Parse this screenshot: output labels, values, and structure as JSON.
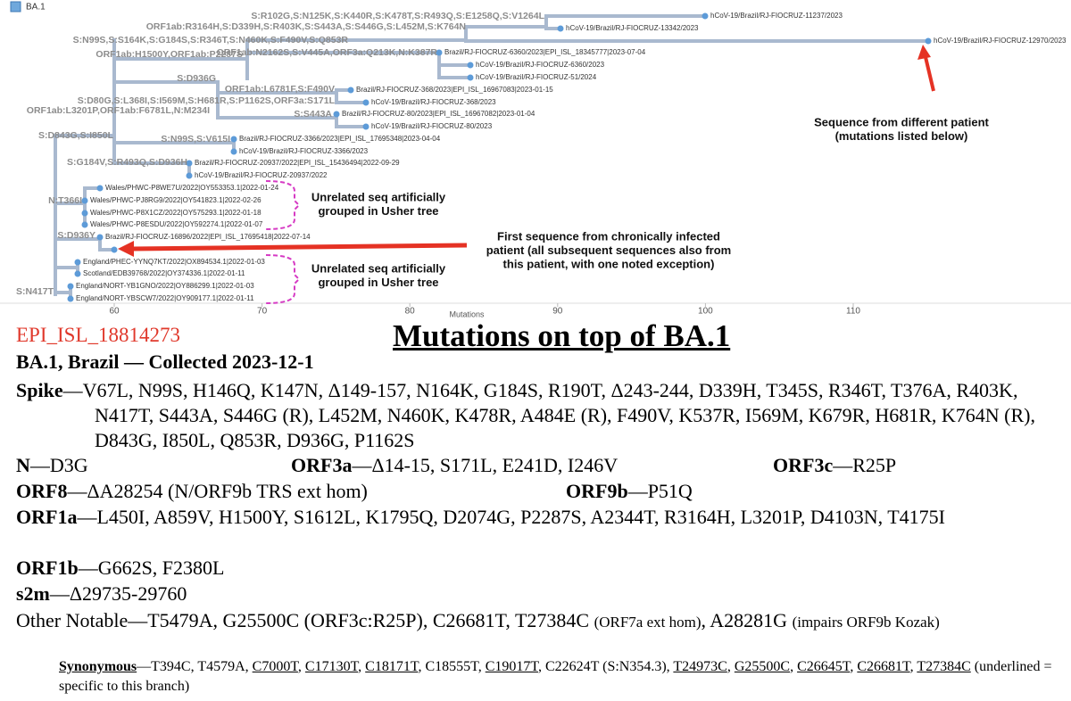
{
  "legend": {
    "label": "BA.1"
  },
  "axis": {
    "label": "Mutations",
    "ticks": [
      60,
      70,
      80,
      90,
      100,
      110
    ]
  },
  "tree": {
    "branch_labels": [
      "S:R102G,S:N125K,S:K440R,S:K478T,S:R493Q,S:E1258Q,S:V1264L",
      "ORF1ab:R3164H,S:D339H,S:R403K,S:S443A,S:S446G,S:L452M,S:K764N",
      "S:N99S,S:S164K,S:G184S,S:R346T,S:N460K,S:F490V,S:Q853R",
      "ORF1ab:H1500Y,ORF1ab:P2287S",
      "ORF1ab:N2162S,S:V445A,ORF3a:Q213K,N:K387R",
      "S:D936G",
      "ORF1ab:L6781F,S:F490V",
      "S:D80G,S:L368I,S:I569M,S:H681R,S:P1162S,ORF3a:S171L",
      "ORF1ab:L3201P,ORF1ab:F6781L,N:M234I",
      "S:S443A",
      "S:D843G,S:I850L",
      "S:N99S,S:V615I",
      "S:G184V,S:R493Q,S:D936H",
      "N:T366I",
      "S:D936Y",
      "S:N417T"
    ],
    "leaves": [
      "hCoV-19/Brazil/RJ-FIOCRUZ-11237/2023",
      "hCoV-19/Brazil/RJ-FIOCRUZ-13342/2023",
      "hCoV-19/Brazil/RJ-FIOCRUZ-12970/2023",
      "Brazil/RJ-FIOCRUZ-6360/2023|EPI_ISL_18345777|2023-07-04",
      "hCoV-19/Brazil/RJ-FIOCRUZ-6360/2023",
      "hCoV-19/Brazil/RJ-FIOCRUZ-51/2024",
      "Brazil/RJ-FIOCRUZ-368/2023|EPI_ISL_16967083|2023-01-15",
      "hCoV-19/Brazil/RJ-FIOCRUZ-368/2023",
      "Brazil/RJ-FIOCRUZ-80/2023|EPI_ISL_16967082|2023-01-04",
      "hCoV-19/Brazil/RJ-FIOCRUZ-80/2023",
      "Brazil/RJ-FIOCRUZ-3366/2023|EPI_ISL_17695348|2023-04-04",
      "hCoV-19/Brazil/RJ-FIOCRUZ-3366/2023",
      "Brazil/RJ-FIOCRUZ-20937/2022|EPI_ISL_15436494|2022-09-29",
      "hCoV-19/Brazil/RJ-FIOCRUZ-20937/2022",
      "Wales/PHWC-P8WE7U/2022|OY553353.1|2022-01-24",
      "Wales/PHWC-PJ8RG9/2022|OY541823.1|2022-02-26",
      "Wales/PHWC-P8X1CZ/2022|OY575293.1|2022-01-18",
      "Wales/PHWC-P8ESDU/2022|OY592274.1|2022-01-07",
      "Brazil/RJ-FIOCRUZ-16896/2022|EPI_ISL_17695418|2022-07-14",
      "England/PHEC-YYNQ7KT/2022|OX894534.1|2022-01-03",
      "Scotland/EDB39768/2022|OY374336.1|2022-01-11",
      "England/NORT-YB1GNO/2022|OY886299.1|2022-01-03",
      "England/NORT-YBSCW7/2022|OY909177.1|2022-01-11"
    ]
  },
  "annotations": [
    [
      "Sequence from different patient",
      "(mutations listed below)"
    ],
    [
      "Unrelated seq artificially",
      "grouped in Usher tree"
    ],
    [
      "First sequence from chronically infected",
      "patient (all subsequent sequences also from",
      "this patient, with one noted exception)"
    ],
    [
      "Unrelated seq artificially",
      "grouped in Usher tree"
    ]
  ],
  "document": {
    "sample_id": "EPI_ISL_18814273",
    "title": "Mutations on top of BA.1",
    "subtitle": "BA.1, Brazil — Collected 2023-12-1",
    "rows": [
      [
        {
          "heading": "Spike",
          "text": "—V67L, N99S, H146Q, K147N, Δ149-157, N164K, G184S, R190T, Δ243-244, D339H, T345S, R346T, T376A, R403K, N417T, S443A, S446G (R), L452M, N460K, K478R, A484E (R), F490V, K537R, I569M, K679R, H681R, K764N (R), D843G, I850L, Q853R, D936G, P1162S"
        }
      ],
      [
        {
          "heading": "N",
          "text": "—D3G"
        },
        {
          "heading": "ORF3a",
          "text": "—Δ14-15, S171L, E241D, I246V"
        },
        {
          "heading": "ORF3c",
          "text": "—R25P"
        }
      ],
      [
        {
          "heading": "ORF8",
          "text": "—ΔA28254 (N/ORF9b TRS ext hom)"
        },
        {
          "heading": "ORF9b",
          "text": "—P51Q"
        }
      ],
      [
        {
          "heading": "ORF1a",
          "text": "—L450I, A859V, H1500Y, S1612L, K1795Q, D2074G, P2287S, A2344T, R3164H, L3201P, D4103N, T4175I"
        }
      ],
      [
        {
          "heading": "ORF1b",
          "text": "—G662S, F2380L"
        }
      ],
      [
        {
          "heading": "s2m",
          "text": "—Δ29735-29760"
        }
      ]
    ],
    "other_notable": [
      {
        "text": "Other Notable—T5479A, G25500C (ORF3c:R25P), C26681T, T27384C ",
        "small": false
      },
      {
        "text": "(ORF7a ext hom)",
        "small": true
      },
      {
        "text": ", A28281G ",
        "small": false
      },
      {
        "text": "(impairs ORF9b Kozak)",
        "small": true
      }
    ],
    "synonymous": [
      {
        "text": "Synonymous",
        "bold": true,
        "underline": true
      },
      {
        "text": "—T394C, T4579A, ",
        "bold": false,
        "underline": false
      },
      {
        "text": "C7000T",
        "bold": false,
        "underline": true
      },
      {
        "text": ", ",
        "bold": false,
        "underline": false
      },
      {
        "text": "C17130T",
        "bold": false,
        "underline": true
      },
      {
        "text": ", ",
        "bold": false,
        "underline": false
      },
      {
        "text": "C18171T",
        "bold": false,
        "underline": true
      },
      {
        "text": ", C18555T, ",
        "bold": false,
        "underline": false
      },
      {
        "text": "C19017T",
        "bold": false,
        "underline": true
      },
      {
        "text": ", C22624T (S:N354.3), ",
        "bold": false,
        "underline": false
      },
      {
        "text": "T24973C",
        "bold": false,
        "underline": true
      },
      {
        "text": ", ",
        "bold": false,
        "underline": false
      },
      {
        "text": "G25500C",
        "bold": false,
        "underline": true
      },
      {
        "text": ", ",
        "bold": false,
        "underline": false
      },
      {
        "text": "C26645T",
        "bold": false,
        "underline": true
      },
      {
        "text": ", ",
        "bold": false,
        "underline": false
      },
      {
        "text": "C26681T",
        "bold": false,
        "underline": true
      },
      {
        "text": ", ",
        "bold": false,
        "underline": false
      },
      {
        "text": "T27384C",
        "bold": false,
        "underline": true
      },
      {
        "text": " (underlined = specific to this branch)",
        "bold": false,
        "underline": false
      }
    ]
  }
}
